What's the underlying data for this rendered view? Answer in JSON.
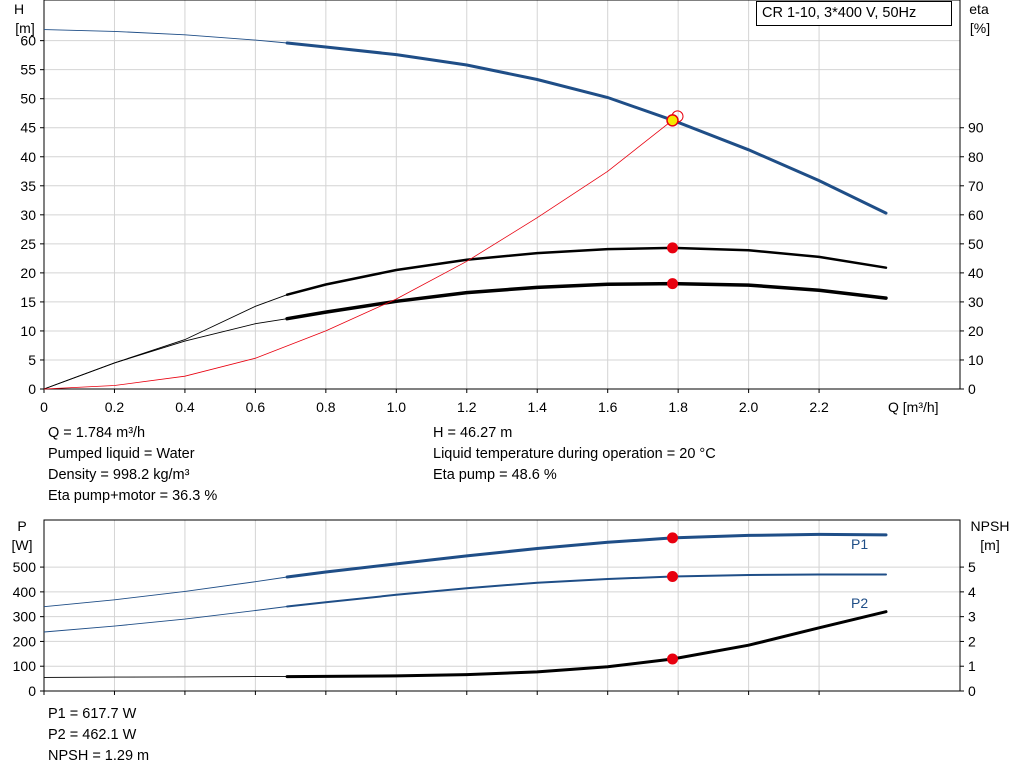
{
  "pump_title": "CR 1-10, 3*400 V, 50Hz",
  "info_top": {
    "left": [
      "Q = 1.784 m³/h",
      "Pumped liquid = Water",
      "Density = 998.2 kg/m³",
      "Eta pump+motor = 36.3 %"
    ],
    "right": [
      "H = 46.27 m",
      "Liquid temperature during operation = 20 °C",
      "Eta pump = 48.6 %"
    ]
  },
  "info_bottom": [
    "P1 = 617.7 W",
    "P2 = 462.1 W",
    "NPSH = 1.29 m"
  ],
  "colors": {
    "blue": "#1f4e87",
    "red": "#e8000f",
    "black": "#000000",
    "yellow": "#f5e800"
  },
  "chart_data": [
    {
      "type": "line",
      "xlabel": "Q [m³/h]",
      "ylabel_left": [
        "H",
        "[m]"
      ],
      "ylabel_right": [
        "eta",
        "[%]"
      ],
      "xlim": [
        0,
        2.6
      ],
      "ylim_left": [
        0,
        67
      ],
      "ylim_right": [
        0,
        134
      ],
      "x_ticks": [
        "0",
        "0.2",
        "0.4",
        "0.6",
        "0.8",
        "1.0",
        "1.2",
        "1.4",
        "1.6",
        "1.8",
        "2.0",
        "2.2"
      ],
      "y_ticks_left": [
        "0",
        "5",
        "10",
        "15",
        "20",
        "25",
        "30",
        "35",
        "40",
        "45",
        "50",
        "55",
        "60"
      ],
      "y_ticks_right": [
        "0",
        "10",
        "20",
        "30",
        "40",
        "50",
        "60",
        "70",
        "80",
        "90"
      ],
      "grid": true,
      "operating_range": [
        0.69,
        2.39
      ],
      "duty_point": {
        "q": 1.784,
        "h": 46.27
      },
      "series": [
        {
          "key": "H",
          "axis": "left",
          "color": "#1f4e87",
          "width": 3,
          "x": [
            0,
            0.2,
            0.4,
            0.6,
            0.69,
            0.8,
            1.0,
            1.2,
            1.4,
            1.6,
            1.784,
            2.0,
            2.2,
            2.39
          ],
          "y": [
            61.9,
            61.6,
            61.0,
            60.1,
            59.6,
            58.9,
            57.6,
            55.8,
            53.3,
            50.2,
            46.3,
            41.2,
            35.9,
            30.3
          ]
        },
        {
          "key": "eta_pump",
          "axis": "right",
          "color": "#000000",
          "width": 2.5,
          "x": [
            0,
            0.2,
            0.4,
            0.6,
            0.69,
            0.8,
            1.0,
            1.2,
            1.4,
            1.6,
            1.784,
            2.0,
            2.2,
            2.39
          ],
          "y": [
            0,
            9,
            17,
            28.5,
            32.5,
            36,
            41,
            44.5,
            46.8,
            48.2,
            48.6,
            47.8,
            45.5,
            41.8
          ]
        },
        {
          "key": "eta_pump_motor",
          "axis": "right",
          "color": "#000000",
          "width": 3.5,
          "x": [
            0,
            0.2,
            0.4,
            0.6,
            0.69,
            0.8,
            1.0,
            1.2,
            1.4,
            1.6,
            1.784,
            2.0,
            2.2,
            2.39
          ],
          "y": [
            0,
            9,
            16.5,
            22.5,
            24.2,
            26.5,
            30.2,
            33.2,
            35,
            36.1,
            36.3,
            35.8,
            34,
            31.3
          ]
        },
        {
          "key": "H_eta_pump",
          "axis": "left",
          "color": "#e8000f",
          "width": 0.8,
          "x": [
            0,
            0.2,
            0.4,
            0.6,
            0.8,
            1.0,
            1.2,
            1.4,
            1.6,
            1.784
          ],
          "y": [
            0,
            0.6,
            2.2,
            5.3,
            10,
            15.5,
            22,
            29.5,
            37.5,
            46.3
          ]
        }
      ],
      "markers": [
        {
          "series": "eta_pump",
          "x": 1.784,
          "y": 48.6
        },
        {
          "series": "eta_pump_motor",
          "x": 1.784,
          "y": 36.3
        }
      ]
    },
    {
      "type": "line",
      "ylabel_left": [
        "P",
        "[W]"
      ],
      "ylabel_right": [
        "NPSH",
        "[m]"
      ],
      "xlim": [
        0,
        2.6
      ],
      "ylim_left": [
        0,
        690
      ],
      "ylim_right": [
        0,
        6.9
      ],
      "y_ticks_left": [
        "0",
        "100",
        "200",
        "300",
        "400",
        "500"
      ],
      "y_ticks_right": [
        "0",
        "1",
        "2",
        "3",
        "4",
        "5"
      ],
      "grid": true,
      "operating_range": [
        0.69,
        2.39
      ],
      "series": [
        {
          "key": "P1",
          "name": "P1",
          "axis": "left",
          "color": "#1f4e87",
          "width": 3,
          "x": [
            0,
            0.2,
            0.4,
            0.6,
            0.69,
            0.8,
            1.0,
            1.2,
            1.4,
            1.6,
            1.784,
            2.0,
            2.2,
            2.39
          ],
          "y": [
            340,
            368,
            402,
            441,
            460,
            480,
            513,
            545,
            575,
            600,
            617.7,
            628,
            632,
            630
          ]
        },
        {
          "key": "P2",
          "name": "P2",
          "axis": "left",
          "color": "#1f4e87",
          "width": 2,
          "x": [
            0,
            0.2,
            0.4,
            0.6,
            0.69,
            0.8,
            1.0,
            1.2,
            1.4,
            1.6,
            1.784,
            2.0,
            2.2,
            2.39
          ],
          "y": [
            238,
            262,
            290,
            325,
            341,
            358,
            388,
            415,
            437,
            452,
            462.1,
            468,
            470,
            470
          ]
        },
        {
          "key": "NPSH",
          "axis": "right",
          "color": "#000000",
          "width": 3,
          "x": [
            0,
            0.2,
            0.4,
            0.6,
            0.69,
            0.8,
            1.0,
            1.2,
            1.4,
            1.6,
            1.784,
            2.0,
            2.2,
            2.39
          ],
          "y": [
            0.55,
            0.56,
            0.57,
            0.58,
            0.58,
            0.59,
            0.61,
            0.66,
            0.77,
            0.98,
            1.29,
            1.85,
            2.55,
            3.2
          ]
        }
      ],
      "markers": [
        {
          "series": "P1",
          "x": 1.784,
          "y": 617.7
        },
        {
          "series": "P2",
          "x": 1.784,
          "y": 462.1
        },
        {
          "series": "NPSH",
          "x": 1.784,
          "y": 1.29
        }
      ]
    }
  ]
}
